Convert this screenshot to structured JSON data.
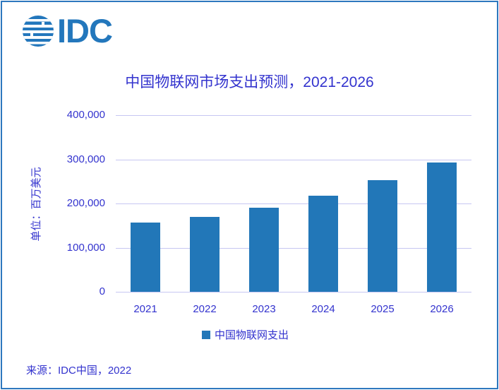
{
  "frame": {
    "border_color": "#2E78BE",
    "background": "#FFFFFF"
  },
  "logo": {
    "text": "IDC",
    "color": "#2377BC",
    "icon": "striped-globe-icon"
  },
  "chart_data": {
    "type": "bar",
    "title": "中国物联网市场支出预测，2021-2026",
    "categories": [
      "2021",
      "2022",
      "2023",
      "2024",
      "2025",
      "2026"
    ],
    "values": [
      157000,
      170000,
      190000,
      218000,
      253000,
      293000
    ],
    "series_name": "中国物联网支出",
    "xlabel": "",
    "ylabel": "单位：百万美元",
    "ylim": [
      0,
      400000
    ],
    "yticks": [
      0,
      100000,
      200000,
      300000,
      400000
    ],
    "ytick_labels": [
      "0",
      "100,000",
      "200,000",
      "300,000",
      "400,000"
    ],
    "grid": true,
    "legend_position": "bottom-center",
    "bar_color": "#2277B8",
    "text_color": "#3333CE",
    "gridline_color": "#C6C6F2"
  },
  "legend": {
    "marker_color": "#2277B8",
    "label": "中国物联网支出"
  },
  "source": {
    "text": "来源：IDC中国，2022"
  }
}
